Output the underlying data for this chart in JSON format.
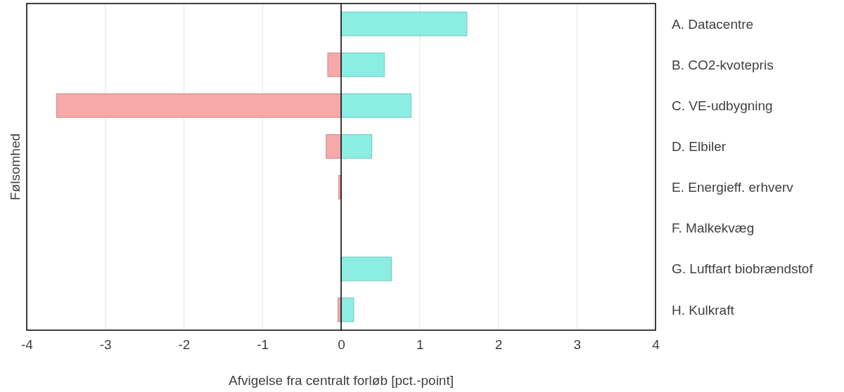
{
  "chart_data": {
    "type": "bar",
    "orientation": "horizontal",
    "stacked": true,
    "ylabel": "Følsomhed",
    "xlabel": "Afvigelse fra centralt forløb [pct.-point]",
    "categories": [
      "A. Datacentre",
      "B. CO2-kvotepris",
      "C. VE-udbygning",
      "D. Elbiler",
      "E. Energieff. erhverv",
      "F. Malkekvæg",
      "G. Luftfart biobrændstof",
      "H. Kulkraft"
    ],
    "series": [
      {
        "color": "#f7a8a8",
        "values": [
          null,
          -0.17,
          -3.62,
          -0.19,
          -0.03,
          null,
          null,
          -0.04
        ]
      },
      {
        "color": "#8ceee2",
        "values": [
          1.6,
          0.55,
          0.89,
          0.39,
          null,
          null,
          0.64,
          0.16
        ]
      }
    ],
    "xlim": [
      -4,
      4
    ],
    "xticks": [
      -4,
      -3,
      -2,
      -1,
      0,
      1,
      2,
      3,
      4
    ],
    "grid": "x"
  }
}
